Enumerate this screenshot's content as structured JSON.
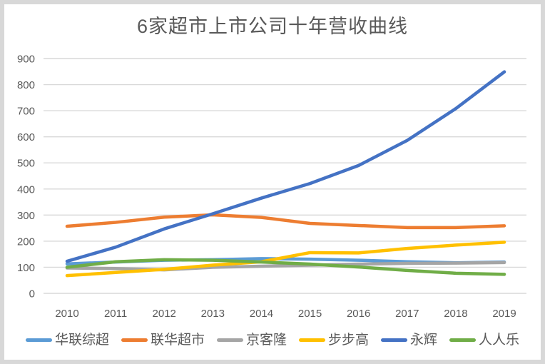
{
  "frame": {
    "background_color": "#FFFFFF",
    "border_color": "#D8D8D8"
  },
  "chart_data": {
    "type": "line",
    "title": "6家超市上市公司十年营收曲线",
    "categories": [
      "2010",
      "2011",
      "2012",
      "2013",
      "2014",
      "2015",
      "2016",
      "2017",
      "2018",
      "2019"
    ],
    "series": [
      {
        "name": "华联综超",
        "color": "#5B9BD5",
        "values": [
          113,
          120,
          127,
          129,
          133,
          131,
          127,
          121,
          117,
          120
        ]
      },
      {
        "name": "联华超市",
        "color": "#ED7D31",
        "values": [
          257,
          272,
          292,
          301,
          291,
          268,
          260,
          252,
          252,
          259
        ]
      },
      {
        "name": "京客隆",
        "color": "#A5A5A5",
        "values": [
          97,
          95,
          90,
          100,
          104,
          108,
          112,
          115,
          116,
          118
        ]
      },
      {
        "name": "步步高",
        "color": "#FFC000",
        "values": [
          68,
          80,
          92,
          108,
          121,
          156,
          155,
          172,
          185,
          196
        ]
      },
      {
        "name": "永辉",
        "color": "#4472C4",
        "values": [
          123,
          177,
          247,
          305,
          365,
          421,
          490,
          586,
          708,
          849
        ]
      },
      {
        "name": "人人乐",
        "color": "#70AD47",
        "values": [
          100,
          121,
          129,
          127,
          120,
          112,
          101,
          88,
          77,
          73
        ]
      }
    ],
    "xlabel": "",
    "ylabel": "",
    "ylim": [
      0,
      900
    ],
    "y_ticks": [
      0,
      100,
      200,
      300,
      400,
      500,
      600,
      700,
      800,
      900
    ],
    "grid": "horizontal",
    "gridline_color": "#D9D9D9",
    "axis_label_color": "#595959",
    "legend_position": "bottom"
  }
}
